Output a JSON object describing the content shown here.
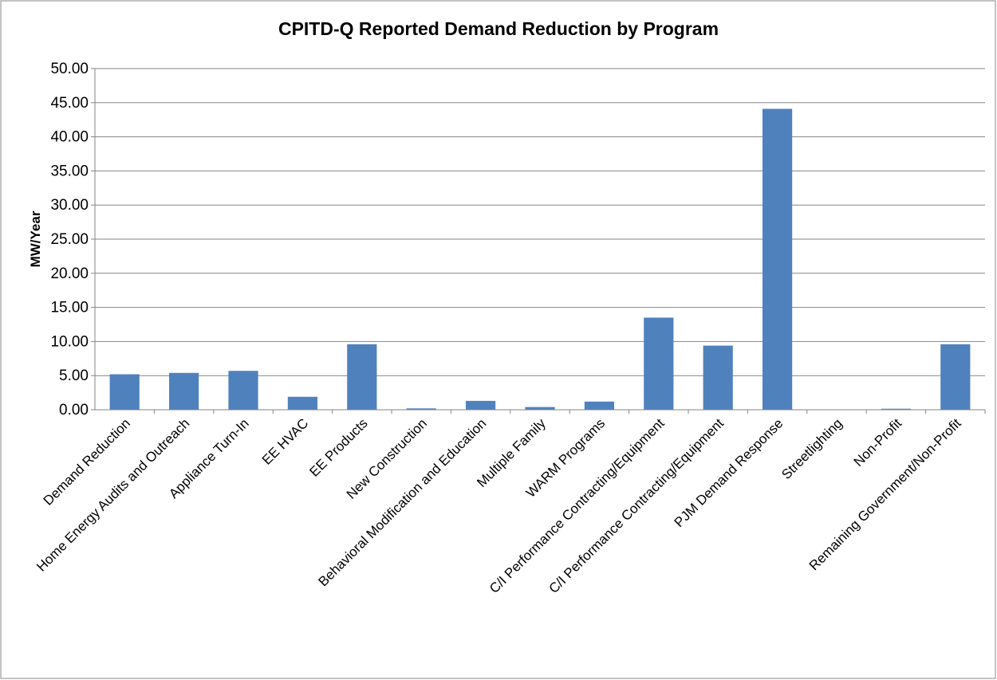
{
  "chart_data": {
    "type": "bar",
    "title": "CPITD-Q Reported Demand Reduction by Program",
    "y_label": "MW/Year",
    "categories": [
      "Demand Reduction",
      "Home Energy Audits and Outreach",
      "Appliance Turn-In",
      "EE HVAC",
      "EE Products",
      "New Construction",
      "Behavioral Modification and Education",
      "Multiple Family",
      "WARM Programs",
      "C/I Performance Contracting/Equipment",
      "C/I Performance Contracting/Equipment",
      "PJM Demand Response",
      "Streetlighting",
      "Non-Profit",
      "Remaining Government/Non-Profit"
    ],
    "values": [
      5.2,
      5.4,
      5.7,
      1.9,
      9.6,
      0.2,
      1.3,
      0.4,
      1.2,
      13.5,
      9.4,
      44.1,
      0.05,
      0.15,
      9.6
    ],
    "color": "#4f81bd",
    "ylim": [
      0,
      50
    ],
    "yticks": [
      {
        "value": 0,
        "label": "0.00"
      },
      {
        "value": 5,
        "label": "5.00"
      },
      {
        "value": 10,
        "label": "10.00"
      },
      {
        "value": 15,
        "label": "15.00"
      },
      {
        "value": 20,
        "label": "20.00"
      },
      {
        "value": 25,
        "label": "25.00"
      },
      {
        "value": 30,
        "label": "30.00"
      },
      {
        "value": 35,
        "label": "35.00"
      },
      {
        "value": 40,
        "label": "40.00"
      },
      {
        "value": 45,
        "label": "45.00"
      },
      {
        "value": 50,
        "label": "50.00"
      }
    ],
    "grid": true
  }
}
